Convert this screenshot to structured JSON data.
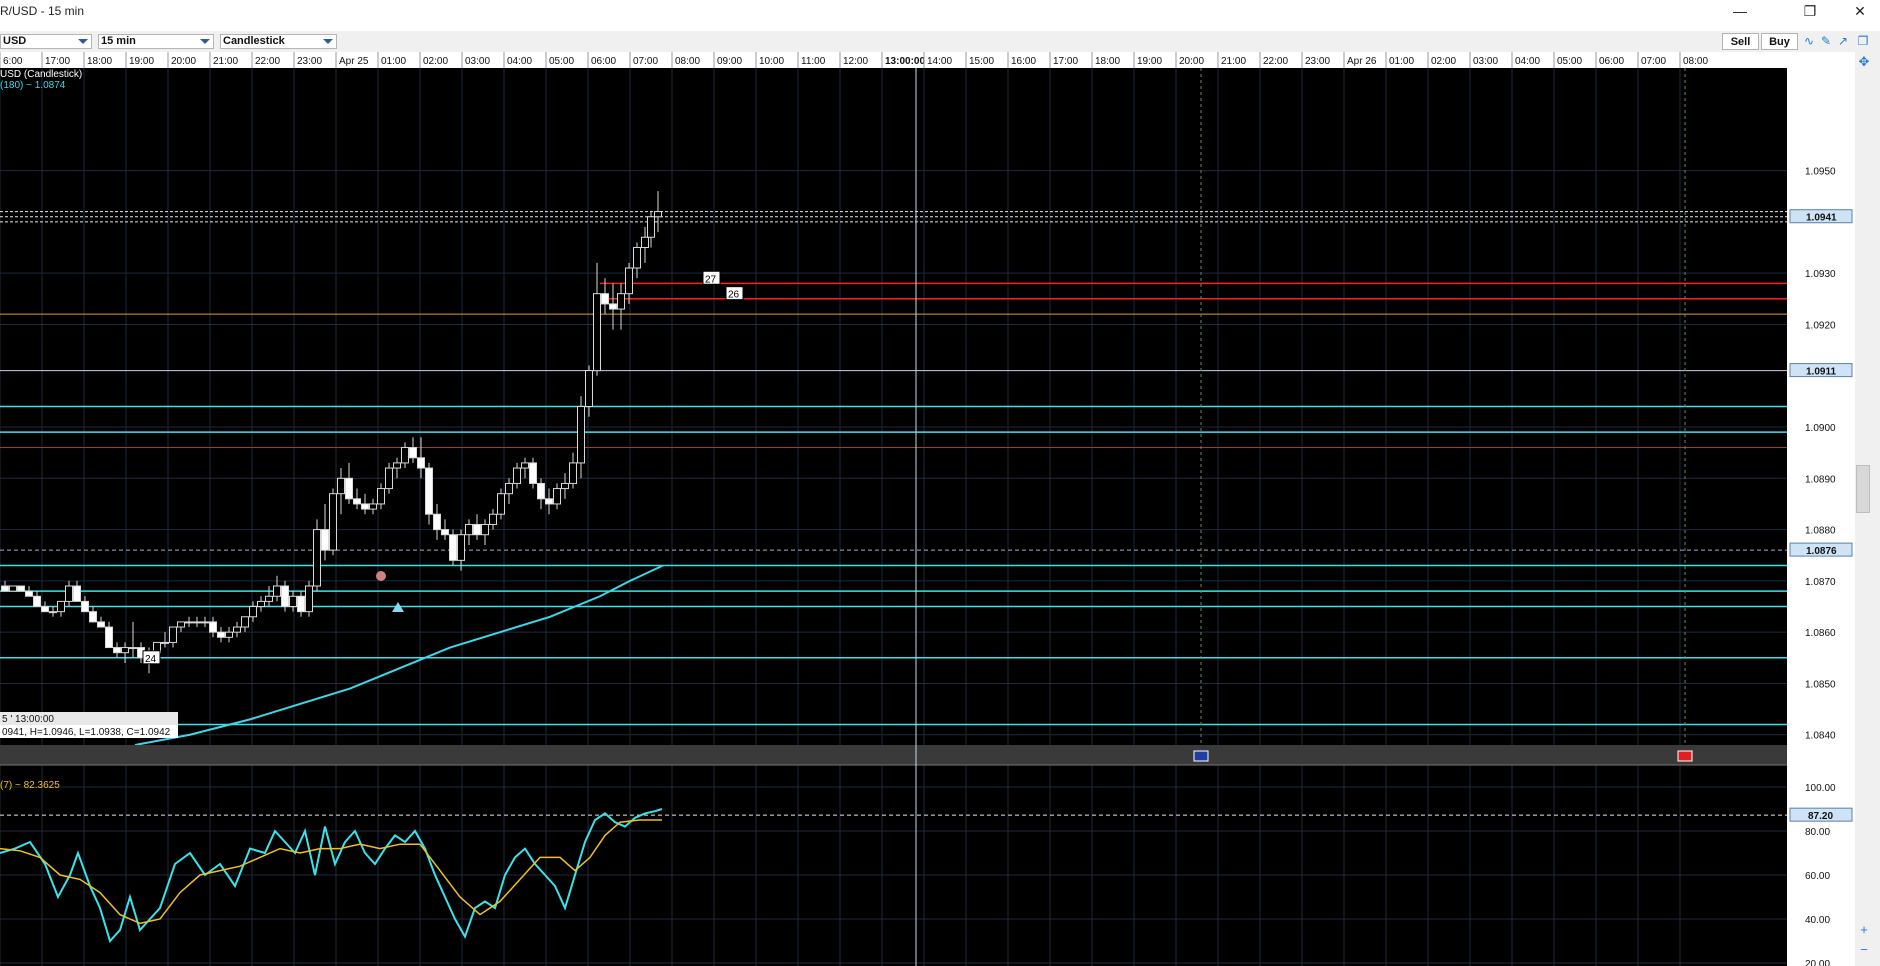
{
  "window": {
    "title": "R/USD - 15 min",
    "controls": [
      "minimize",
      "restore",
      "close"
    ]
  },
  "toolbar": {
    "symbol": "USD",
    "interval": "15 min",
    "chart_type": "Candlestick",
    "sell_label": "Sell",
    "buy_label": "Buy",
    "tools": [
      "draw-line-icon",
      "draw-pencil-icon",
      "drawing-tools-icon",
      "window-icon"
    ]
  },
  "chart": {
    "series_label": "USD (Candlestick)",
    "ma_label": "(180) ~ 1.0874",
    "info_line1": "5 ' 13:00:00",
    "info_line2": "0941, H=1.0946, L=1.0938, C=1.0942",
    "stoch_label": "(7) ~ 82.3625",
    "colors": {
      "background": "#000000",
      "grid": "#1e2a3e",
      "cyan": "#38e4ec",
      "red": "#ff2020",
      "orange": "#e0a030",
      "ma": "#3ad8e8",
      "stoch_signal": "#f0c020"
    }
  },
  "chart_data": {
    "type": "candlestick",
    "x_tick_labels": [
      "6:00",
      "17:00",
      "18:00",
      "19:00",
      "20:00",
      "21:00",
      "22:00",
      "23:00",
      "Apr 25",
      "01:00",
      "02:00",
      "03:00",
      "04:00",
      "05:00",
      "06:00",
      "07:00",
      "08:00",
      "09:00",
      "10:00",
      "11:00",
      "12:00",
      "13:00:00",
      "14:00",
      "15:00",
      "16:00",
      "17:00",
      "18:00",
      "19:00",
      "20:00",
      "21:00",
      "22:00",
      "23:00",
      "Apr 26",
      "01:00",
      "02:00",
      "03:00",
      "04:00",
      "05:00",
      "06:00",
      "07:00",
      "08:00"
    ],
    "price_axis": [
      "1.0950",
      "1.0930",
      "1.0920",
      "1.0900",
      "1.0890",
      "1.0880",
      "1.0870",
      "1.0860",
      "1.0850",
      "1.0840"
    ],
    "price_range": [
      1.0838,
      1.097
    ],
    "price_tags": {
      "current": "1.0941",
      "level_a": "1.0911",
      "level_b": "1.0876"
    },
    "osc_axis": [
      "100.00",
      "80.00",
      "60.00",
      "40.00",
      "20.00"
    ],
    "osc_range": [
      20,
      100
    ],
    "osc_tag": "87.20",
    "markers": [
      "24",
      "27",
      "26"
    ],
    "horizontal_levels": {
      "cyan": [
        1.0904,
        1.0899,
        1.0873,
        1.0868,
        1.0865,
        1.0855,
        1.0842
      ],
      "red": [
        1.0928,
        1.0925
      ],
      "orange": [
        1.0922
      ],
      "brown": [
        1.0896
      ],
      "white": [
        1.0911
      ],
      "dashed_current": [
        1.0942,
        1.0941,
        1.094
      ],
      "dashed_level": [
        1.0876
      ]
    },
    "ma_series": [
      [
        135,
        1.0838
      ],
      [
        190,
        1.084
      ],
      [
        250,
        1.0843
      ],
      [
        300,
        1.0846
      ],
      [
        350,
        1.0849
      ],
      [
        400,
        1.0853
      ],
      [
        450,
        1.0857
      ],
      [
        500,
        1.086
      ],
      [
        550,
        1.0863
      ],
      [
        600,
        1.0867
      ],
      [
        630,
        1.087
      ],
      [
        663,
        1.0873
      ]
    ],
    "candles": [
      [
        5,
        1.0869,
        1.087,
        1.0868,
        1.0868
      ],
      [
        13,
        1.0868,
        1.0869,
        1.0868,
        1.0869
      ],
      [
        21,
        1.0869,
        1.0869,
        1.0868,
        1.0868
      ],
      [
        29,
        1.0868,
        1.0869,
        1.0867,
        1.0867
      ],
      [
        37,
        1.0867,
        1.0868,
        1.0865,
        1.0865
      ],
      [
        45,
        1.0865,
        1.0866,
        1.0864,
        1.0864
      ],
      [
        53,
        1.0864,
        1.0865,
        1.0863,
        1.0864
      ],
      [
        61,
        1.0864,
        1.0866,
        1.0863,
        1.0866
      ],
      [
        69,
        1.0866,
        1.087,
        1.0865,
        1.0869
      ],
      [
        77,
        1.0869,
        1.087,
        1.0866,
        1.0866
      ],
      [
        85,
        1.0866,
        1.0867,
        1.0864,
        1.0864
      ],
      [
        93,
        1.0864,
        1.0865,
        1.0862,
        1.0862
      ],
      [
        101,
        1.0862,
        1.0863,
        1.0861,
        1.0861
      ],
      [
        109,
        1.0861,
        1.0862,
        1.0857,
        1.0857
      ],
      [
        117,
        1.0857,
        1.0858,
        1.0855,
        1.0856
      ],
      [
        125,
        1.0856,
        1.0858,
        1.0854,
        1.0857
      ],
      [
        133,
        1.0857,
        1.0862,
        1.0855,
        1.0857
      ],
      [
        141,
        1.0857,
        1.0858,
        1.0854,
        1.0855
      ],
      [
        149,
        1.0855,
        1.0857,
        1.0852,
        1.0856
      ],
      [
        157,
        1.0856,
        1.0858,
        1.0855,
        1.0858
      ],
      [
        165,
        1.0858,
        1.086,
        1.0857,
        1.0858
      ],
      [
        173,
        1.0858,
        1.0861,
        1.0857,
        1.0861
      ],
      [
        181,
        1.0861,
        1.0862,
        1.086,
        1.0862
      ],
      [
        189,
        1.0862,
        1.0863,
        1.0861,
        1.0862
      ],
      [
        197,
        1.0862,
        1.0863,
        1.0861,
        1.0862
      ],
      [
        205,
        1.0862,
        1.0863,
        1.0861,
        1.0862
      ],
      [
        213,
        1.0862,
        1.0863,
        1.0859,
        1.086
      ],
      [
        221,
        1.086,
        1.0861,
        1.0858,
        1.0859
      ],
      [
        229,
        1.0859,
        1.0861,
        1.0858,
        1.086
      ],
      [
        237,
        1.086,
        1.0862,
        1.0859,
        1.0861
      ],
      [
        245,
        1.0861,
        1.0863,
        1.086,
        1.0863
      ],
      [
        253,
        1.0863,
        1.0866,
        1.0862,
        1.0865
      ],
      [
        261,
        1.0865,
        1.0867,
        1.0864,
        1.0866
      ],
      [
        269,
        1.0866,
        1.0869,
        1.0865,
        1.0867
      ],
      [
        277,
        1.0867,
        1.0871,
        1.0866,
        1.0869
      ],
      [
        285,
        1.0869,
        1.087,
        1.0864,
        1.0865
      ],
      [
        293,
        1.0865,
        1.0868,
        1.0864,
        1.0867
      ],
      [
        301,
        1.0867,
        1.0868,
        1.0863,
        1.0864
      ],
      [
        309,
        1.0864,
        1.087,
        1.0863,
        1.0869
      ],
      [
        317,
        1.0869,
        1.0882,
        1.0868,
        1.088
      ],
      [
        325,
        1.088,
        1.0885,
        1.0874,
        1.0876
      ],
      [
        333,
        1.0876,
        1.0888,
        1.0875,
        1.0887
      ],
      [
        341,
        1.0887,
        1.0892,
        1.0883,
        1.089
      ],
      [
        349,
        1.089,
        1.0893,
        1.0885,
        1.0886
      ],
      [
        357,
        1.0886,
        1.0888,
        1.0884,
        1.0885
      ],
      [
        365,
        1.0885,
        1.0887,
        1.0883,
        1.0884
      ],
      [
        373,
        1.0884,
        1.0886,
        1.0883,
        1.0885
      ],
      [
        381,
        1.0885,
        1.0889,
        1.0884,
        1.0888
      ],
      [
        389,
        1.0888,
        1.0893,
        1.0887,
        1.0892
      ],
      [
        397,
        1.0892,
        1.0894,
        1.089,
        1.0893
      ],
      [
        405,
        1.0893,
        1.0897,
        1.0892,
        1.0896
      ],
      [
        413,
        1.0896,
        1.0898,
        1.0893,
        1.0894
      ],
      [
        421,
        1.0894,
        1.0898,
        1.089,
        1.0892
      ],
      [
        429,
        1.0892,
        1.0893,
        1.0881,
        1.0883
      ],
      [
        437,
        1.0883,
        1.0885,
        1.0878,
        1.088
      ],
      [
        445,
        1.088,
        1.0882,
        1.0878,
        1.0879
      ],
      [
        453,
        1.0879,
        1.088,
        1.0873,
        1.0874
      ],
      [
        461,
        1.0874,
        1.088,
        1.0872,
        1.0879
      ],
      [
        469,
        1.0879,
        1.0882,
        1.0877,
        1.0881
      ],
      [
        477,
        1.0881,
        1.0883,
        1.0878,
        1.0879
      ],
      [
        485,
        1.0879,
        1.0882,
        1.0877,
        1.0881
      ],
      [
        493,
        1.0881,
        1.0884,
        1.088,
        1.0883
      ],
      [
        501,
        1.0883,
        1.0888,
        1.0882,
        1.0887
      ],
      [
        509,
        1.0887,
        1.089,
        1.0885,
        1.0889
      ],
      [
        517,
        1.0889,
        1.0893,
        1.0888,
        1.0892
      ],
      [
        525,
        1.0892,
        1.0894,
        1.089,
        1.0893
      ],
      [
        533,
        1.0893,
        1.0894,
        1.0888,
        1.0889
      ],
      [
        541,
        1.0889,
        1.089,
        1.0884,
        1.0886
      ],
      [
        549,
        1.0886,
        1.0888,
        1.0883,
        1.0885
      ],
      [
        557,
        1.0885,
        1.0889,
        1.0884,
        1.0888
      ],
      [
        565,
        1.0888,
        1.0891,
        1.0886,
        1.0889
      ],
      [
        573,
        1.0889,
        1.0895,
        1.0888,
        1.0893
      ],
      [
        581,
        1.0893,
        1.0906,
        1.089,
        1.0904
      ],
      [
        589,
        1.0904,
        1.0912,
        1.0902,
        1.0911
      ],
      [
        597,
        1.0911,
        1.0932,
        1.091,
        1.0926
      ],
      [
        605,
        1.0926,
        1.0929,
        1.0922,
        1.0924
      ],
      [
        613,
        1.0924,
        1.0928,
        1.0919,
        1.0923
      ],
      [
        621,
        1.0923,
        1.0928,
        1.0919,
        1.0926
      ],
      [
        629,
        1.0926,
        1.0932,
        1.0924,
        1.0931
      ],
      [
        637,
        1.0931,
        1.0936,
        1.0929,
        1.0935
      ],
      [
        645,
        1.0935,
        1.0939,
        1.0932,
        1.0937
      ],
      [
        651,
        1.0937,
        1.0942,
        1.0935,
        1.0941
      ],
      [
        658,
        1.0941,
        1.0946,
        1.0938,
        1.0942
      ]
    ],
    "stoch_k": [
      [
        0,
        70
      ],
      [
        15,
        72
      ],
      [
        30,
        75
      ],
      [
        45,
        65
      ],
      [
        58,
        50
      ],
      [
        70,
        60
      ],
      [
        78,
        70
      ],
      [
        90,
        55
      ],
      [
        100,
        45
      ],
      [
        110,
        30
      ],
      [
        120,
        35
      ],
      [
        130,
        50
      ],
      [
        140,
        35
      ],
      [
        150,
        40
      ],
      [
        160,
        45
      ],
      [
        175,
        65
      ],
      [
        190,
        70
      ],
      [
        205,
        60
      ],
      [
        220,
        65
      ],
      [
        235,
        55
      ],
      [
        250,
        72
      ],
      [
        265,
        70
      ],
      [
        275,
        80
      ],
      [
        285,
        75
      ],
      [
        295,
        70
      ],
      [
        305,
        80
      ],
      [
        315,
        60
      ],
      [
        325,
        82
      ],
      [
        335,
        65
      ],
      [
        345,
        75
      ],
      [
        355,
        80
      ],
      [
        365,
        70
      ],
      [
        375,
        65
      ],
      [
        385,
        72
      ],
      [
        395,
        78
      ],
      [
        405,
        75
      ],
      [
        415,
        80
      ],
      [
        425,
        72
      ],
      [
        435,
        60
      ],
      [
        445,
        50
      ],
      [
        455,
        40
      ],
      [
        465,
        32
      ],
      [
        475,
        45
      ],
      [
        485,
        48
      ],
      [
        495,
        45
      ],
      [
        505,
        60
      ],
      [
        515,
        68
      ],
      [
        525,
        72
      ],
      [
        535,
        65
      ],
      [
        545,
        60
      ],
      [
        555,
        55
      ],
      [
        565,
        45
      ],
      [
        575,
        60
      ],
      [
        585,
        75
      ],
      [
        595,
        85
      ],
      [
        605,
        88
      ],
      [
        615,
        84
      ],
      [
        625,
        82
      ],
      [
        635,
        86
      ],
      [
        645,
        88
      ],
      [
        655,
        89
      ],
      [
        662,
        90
      ]
    ],
    "stoch_d": [
      [
        0,
        72
      ],
      [
        20,
        71
      ],
      [
        40,
        68
      ],
      [
        60,
        60
      ],
      [
        80,
        58
      ],
      [
        100,
        52
      ],
      [
        120,
        42
      ],
      [
        140,
        38
      ],
      [
        160,
        40
      ],
      [
        180,
        52
      ],
      [
        200,
        60
      ],
      [
        220,
        62
      ],
      [
        240,
        64
      ],
      [
        260,
        68
      ],
      [
        280,
        72
      ],
      [
        300,
        70
      ],
      [
        320,
        72
      ],
      [
        340,
        72
      ],
      [
        360,
        74
      ],
      [
        380,
        72
      ],
      [
        400,
        74
      ],
      [
        420,
        74
      ],
      [
        440,
        62
      ],
      [
        460,
        50
      ],
      [
        480,
        42
      ],
      [
        500,
        48
      ],
      [
        520,
        58
      ],
      [
        540,
        68
      ],
      [
        560,
        68
      ],
      [
        575,
        62
      ],
      [
        590,
        68
      ],
      [
        605,
        78
      ],
      [
        620,
        84
      ],
      [
        640,
        85
      ],
      [
        662,
        85
      ]
    ]
  }
}
